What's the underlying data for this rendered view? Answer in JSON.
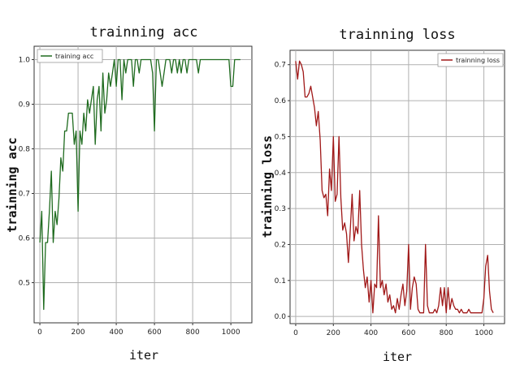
{
  "chart_data": [
    {
      "type": "line",
      "title": "trainning acc",
      "xlabel": "iter",
      "ylabel": "trainning acc",
      "xlim": [
        -30,
        1110
      ],
      "ylim": [
        0.41,
        1.03
      ],
      "xticks": [
        0,
        200,
        400,
        600,
        800,
        1000
      ],
      "xtick_labels": [
        "0",
        "200",
        "400",
        "600",
        "800",
        "1000"
      ],
      "yticks": [
        0.5,
        0.6,
        0.7,
        0.8,
        0.9,
        1.0
      ],
      "ytick_labels": [
        "0.5",
        "0.6",
        "0.7",
        "0.8",
        "0.9",
        "1.0"
      ],
      "grid": true,
      "legend": "top-left",
      "series": [
        {
          "name": "training acc",
          "color": "#1f6b1f",
          "x": [
            0,
            10,
            20,
            30,
            40,
            50,
            60,
            70,
            80,
            90,
            100,
            110,
            120,
            130,
            140,
            150,
            160,
            170,
            180,
            190,
            200,
            210,
            220,
            230,
            240,
            250,
            260,
            270,
            280,
            290,
            300,
            310,
            320,
            330,
            340,
            350,
            360,
            370,
            380,
            390,
            400,
            410,
            420,
            430,
            440,
            450,
            460,
            470,
            480,
            490,
            500,
            510,
            520,
            530,
            540,
            550,
            560,
            570,
            580,
            590,
            600,
            610,
            620,
            630,
            640,
            650,
            660,
            670,
            680,
            690,
            700,
            710,
            720,
            730,
            740,
            750,
            760,
            770,
            780,
            790,
            800,
            810,
            820,
            830,
            840,
            850,
            860,
            870,
            880,
            890,
            900,
            910,
            920,
            930,
            940,
            950,
            960,
            970,
            980,
            990,
            1000,
            1010,
            1020,
            1030,
            1040,
            1050
          ],
          "y": [
            0.59,
            0.66,
            0.44,
            0.59,
            0.59,
            0.66,
            0.75,
            0.59,
            0.66,
            0.63,
            0.69,
            0.78,
            0.75,
            0.84,
            0.84,
            0.88,
            0.88,
            0.88,
            0.81,
            0.84,
            0.66,
            0.84,
            0.81,
            0.88,
            0.84,
            0.91,
            0.88,
            0.91,
            0.94,
            0.81,
            0.91,
            0.94,
            0.84,
            0.97,
            0.88,
            0.91,
            0.97,
            0.94,
            0.97,
            1.0,
            0.94,
            1.0,
            1.0,
            0.91,
            1.0,
            0.97,
            1.0,
            1.0,
            1.0,
            0.94,
            1.0,
            1.0,
            0.97,
            1.0,
            1.0,
            1.0,
            1.0,
            1.0,
            1.0,
            0.97,
            0.84,
            1.0,
            1.0,
            0.97,
            0.94,
            0.97,
            1.0,
            1.0,
            1.0,
            0.97,
            1.0,
            1.0,
            0.97,
            1.0,
            0.97,
            1.0,
            1.0,
            0.97,
            1.0,
            1.0,
            1.0,
            1.0,
            1.0,
            0.97,
            1.0,
            1.0,
            1.0,
            1.0,
            1.0,
            1.0,
            1.0,
            1.0,
            1.0,
            1.0,
            1.0,
            1.0,
            1.0,
            1.0,
            1.0,
            1.0,
            0.94,
            0.94,
            1.0,
            1.0,
            1.0,
            1.0
          ]
        }
      ]
    },
    {
      "type": "line",
      "title": "trainning loss",
      "xlabel": "iter",
      "ylabel": "trainning loss",
      "xlim": [
        -30,
        1110
      ],
      "ylim": [
        -0.02,
        0.74
      ],
      "xticks": [
        0,
        200,
        400,
        600,
        800,
        1000
      ],
      "xtick_labels": [
        "0",
        "200",
        "400",
        "600",
        "800",
        "1000"
      ],
      "yticks": [
        0.0,
        0.1,
        0.2,
        0.3,
        0.4,
        0.5,
        0.6,
        0.7
      ],
      "ytick_labels": [
        "0.0",
        "0.1",
        "0.2",
        "0.3",
        "0.4",
        "0.5",
        "0.6",
        "0.7"
      ],
      "grid": true,
      "legend": "top-right",
      "series": [
        {
          "name": "trainning loss",
          "color": "#a01818",
          "x": [
            0,
            10,
            20,
            30,
            40,
            50,
            60,
            70,
            80,
            90,
            100,
            110,
            120,
            130,
            140,
            150,
            160,
            170,
            180,
            190,
            200,
            210,
            220,
            230,
            240,
            250,
            260,
            270,
            280,
            290,
            300,
            310,
            320,
            330,
            340,
            350,
            360,
            370,
            380,
            390,
            400,
            410,
            420,
            430,
            440,
            450,
            460,
            470,
            480,
            490,
            500,
            510,
            520,
            530,
            540,
            550,
            560,
            570,
            580,
            590,
            600,
            610,
            620,
            630,
            640,
            650,
            660,
            670,
            680,
            690,
            700,
            710,
            720,
            730,
            740,
            750,
            760,
            770,
            780,
            790,
            800,
            810,
            820,
            830,
            840,
            850,
            860,
            870,
            880,
            890,
            900,
            910,
            920,
            930,
            940,
            950,
            960,
            970,
            980,
            990,
            1000,
            1010,
            1020,
            1030,
            1040,
            1050
          ],
          "y": [
            0.71,
            0.66,
            0.71,
            0.7,
            0.68,
            0.61,
            0.61,
            0.62,
            0.64,
            0.61,
            0.58,
            0.53,
            0.57,
            0.49,
            0.35,
            0.33,
            0.34,
            0.28,
            0.41,
            0.35,
            0.5,
            0.32,
            0.34,
            0.5,
            0.33,
            0.24,
            0.26,
            0.23,
            0.15,
            0.24,
            0.34,
            0.21,
            0.25,
            0.23,
            0.35,
            0.2,
            0.13,
            0.08,
            0.11,
            0.04,
            0.1,
            0.01,
            0.09,
            0.08,
            0.28,
            0.08,
            0.1,
            0.06,
            0.09,
            0.04,
            0.06,
            0.02,
            0.03,
            0.01,
            0.05,
            0.02,
            0.06,
            0.09,
            0.03,
            0.07,
            0.2,
            0.02,
            0.08,
            0.11,
            0.09,
            0.02,
            0.01,
            0.01,
            0.01,
            0.2,
            0.03,
            0.01,
            0.01,
            0.01,
            0.02,
            0.01,
            0.03,
            0.08,
            0.03,
            0.08,
            0.01,
            0.08,
            0.02,
            0.05,
            0.03,
            0.02,
            0.02,
            0.01,
            0.02,
            0.01,
            0.01,
            0.01,
            0.02,
            0.01,
            0.01,
            0.01,
            0.01,
            0.01,
            0.01,
            0.01,
            0.05,
            0.14,
            0.17,
            0.07,
            0.02,
            0.01
          ]
        }
      ]
    }
  ]
}
